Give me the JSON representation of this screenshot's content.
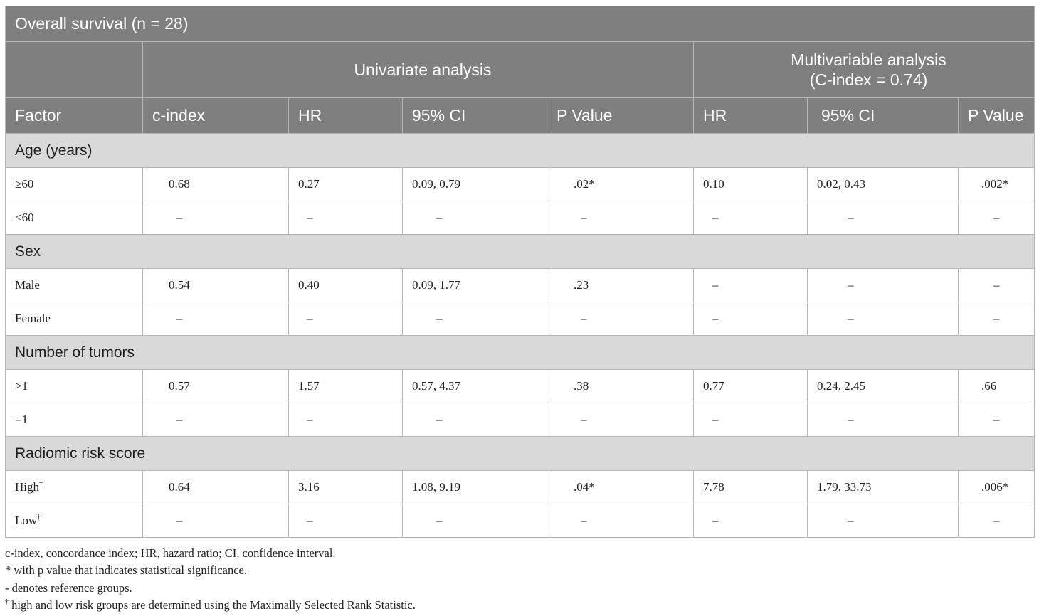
{
  "table": {
    "title": "Overall survival (n = 28)",
    "group_headers": {
      "univariate": "Univariate analysis",
      "multivariable": "Multivariable analysis\n(C-index = 0.74)"
    },
    "columns": [
      "Factor",
      "c-index",
      "HR",
      "95% CI",
      "P Value",
      "HR",
      "95% CI",
      "P Value"
    ],
    "sections": [
      {
        "label": "Age (years)",
        "rows": [
          {
            "factor": "≥60",
            "sup": "",
            "cindex": "0.68",
            "hr": "0.27",
            "ci": "0.09, 0.79",
            "p": ".02*",
            "m_hr": "0.10",
            "m_ci": "0.02, 0.43",
            "m_p": ".002*"
          },
          {
            "factor": "<60",
            "sup": "",
            "cindex": "–",
            "hr": "–",
            "ci": "–",
            "p": "–",
            "m_hr": "–",
            "m_ci": "–",
            "m_p": "–"
          }
        ]
      },
      {
        "label": "Sex",
        "rows": [
          {
            "factor": "Male",
            "sup": "",
            "cindex": "0.54",
            "hr": "0.40",
            "ci": "0.09, 1.77",
            "p": ".23",
            "m_hr": "–",
            "m_ci": "–",
            "m_p": "–"
          },
          {
            "factor": "Female",
            "sup": "",
            "cindex": "–",
            "hr": "–",
            "ci": "–",
            "p": "–",
            "m_hr": "–",
            "m_ci": "–",
            "m_p": "–"
          }
        ]
      },
      {
        "label": "Number of tumors",
        "rows": [
          {
            "factor": ">1",
            "sup": "",
            "cindex": "0.57",
            "hr": "1.57",
            "ci": "0.57, 4.37",
            "p": ".38",
            "m_hr": "0.77",
            "m_ci": "0.24, 2.45",
            "m_p": ".66"
          },
          {
            "factor": "=1",
            "sup": "",
            "cindex": "–",
            "hr": "–",
            "ci": "–",
            "p": "–",
            "m_hr": "–",
            "m_ci": "–",
            "m_p": "–"
          }
        ]
      },
      {
        "label": "Radiomic risk score",
        "rows": [
          {
            "factor": "High",
            "sup": "†",
            "cindex": "0.64",
            "hr": "3.16",
            "ci": "1.08, 9.19",
            "p": ".04*",
            "m_hr": "7.78",
            "m_ci": "1.79, 33.73",
            "m_p": ".006*"
          },
          {
            "factor": "Low",
            "sup": "†",
            "cindex": "–",
            "hr": "–",
            "ci": "–",
            "p": "–",
            "m_hr": "–",
            "m_ci": "–",
            "m_p": "–"
          }
        ]
      }
    ]
  },
  "footnotes": [
    {
      "sup": "",
      "text": "c-index, concordance index; HR, hazard ratio; CI, confidence interval."
    },
    {
      "sup": "",
      "text": "* with p value that indicates statistical significance."
    },
    {
      "sup": "",
      "text": "- denotes reference groups."
    },
    {
      "sup": "†",
      "text": " high and low risk groups are determined using the Maximally Selected Rank Statistic."
    }
  ],
  "colors": {
    "header_bg": "#7f7f7f",
    "section_bg": "#d9d9d9",
    "border": "#b5b5b5"
  }
}
